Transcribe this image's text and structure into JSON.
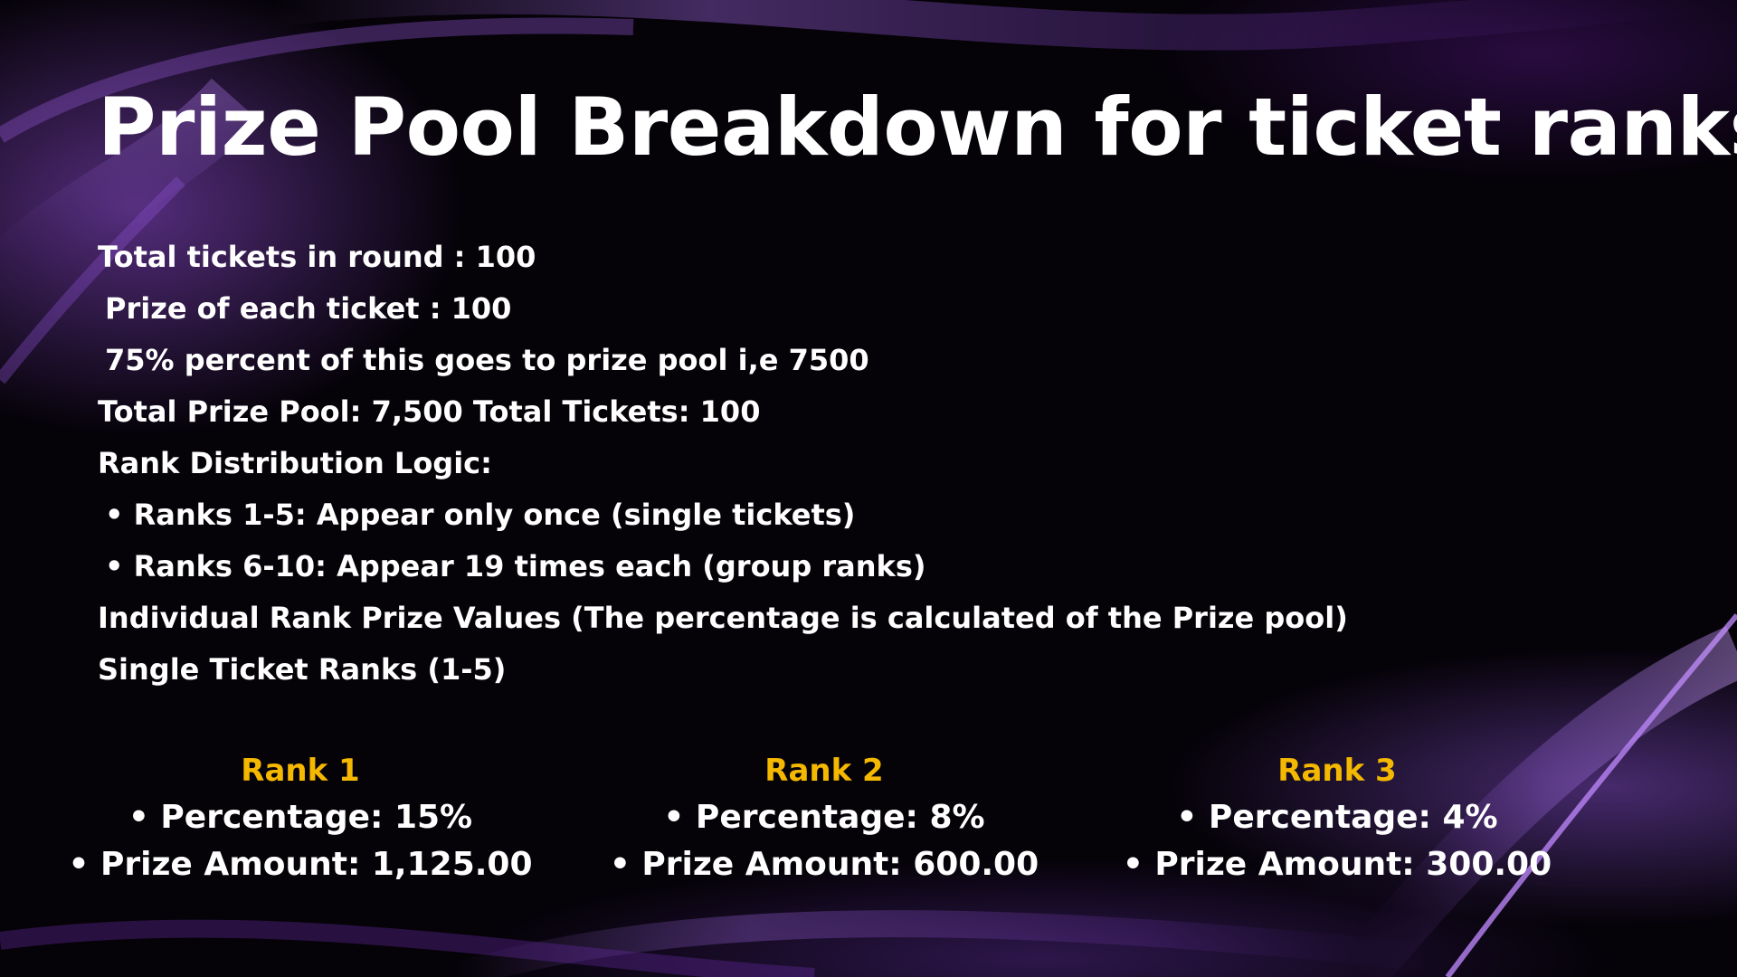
{
  "slide": {
    "title": "Prize Pool Breakdown for ticket ranks",
    "info_lines": [
      "Total tickets in round : 100",
      "Prize of each ticket : 100",
      "75% percent of this goes to prize pool i,e 7500",
      "Total Prize Pool: 7,500 Total Tickets: 100",
      "Rank Distribution Logic:",
      "• Ranks 1-5: Appear only once (single tickets)",
      "• Ranks 6-10: Appear 19 times each (group ranks)",
      "Individual Rank Prize Values (The percentage is calculated of the Prize pool)",
      "Single Ticket Ranks (1-5)"
    ],
    "ranks": [
      {
        "title": "Rank 1",
        "percentage": "• Percentage: 15%",
        "prize": "• Prize Amount: 1,125.00"
      },
      {
        "title": "Rank 2",
        "percentage": "• Percentage: 8%",
        "prize": "• Prize Amount: 600.00"
      },
      {
        "title": "Rank 3",
        "percentage": "• Percentage: 4%",
        "prize": "• Prize Amount: 300.00"
      }
    ]
  },
  "colors": {
    "background": "#050208",
    "accent_purple": "#9a5ce0",
    "rank_title": "#f5b800",
    "text": "#ffffff"
  }
}
